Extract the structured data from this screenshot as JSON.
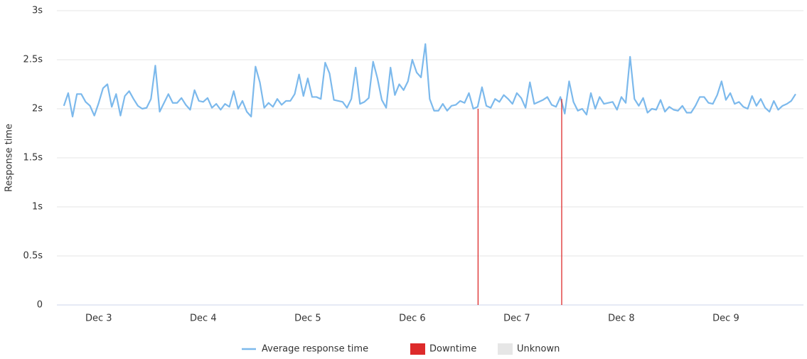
{
  "chart_data": {
    "type": "line",
    "y_label": "Response time",
    "xlim": [
      38.4,
      209.8
    ],
    "xticks": [
      {
        "value": 48,
        "label": "Dec 3"
      },
      {
        "value": 72,
        "label": "Dec 4"
      },
      {
        "value": 96,
        "label": "Dec 5"
      },
      {
        "value": 120,
        "label": "Dec 6"
      },
      {
        "value": 144,
        "label": "Dec 7"
      },
      {
        "value": 168,
        "label": "Dec 8"
      },
      {
        "value": 192,
        "label": "Dec 9"
      }
    ],
    "ylim": [
      0,
      3
    ],
    "yticks": [
      0,
      {
        "value": 0.5,
        "label": "0.5s"
      },
      {
        "value": 1,
        "label": "1s"
      },
      {
        "value": 1.5,
        "label": "1.5s"
      },
      {
        "value": 2,
        "label": "2s"
      },
      {
        "value": 2.5,
        "label": "2.5s"
      },
      {
        "value": 3,
        "label": "3s"
      }
    ],
    "grid": true,
    "legend": "bottom",
    "series": [
      {
        "name": "Average response time",
        "type": "line",
        "color": "#7cb9ec",
        "x": [
          40,
          41,
          42,
          43,
          44,
          45,
          46,
          47,
          48,
          49,
          50,
          51,
          52,
          53,
          54,
          55,
          56,
          57,
          58,
          59,
          60,
          61,
          62,
          63,
          64,
          65,
          66,
          67,
          68,
          69,
          70,
          71,
          72,
          73,
          74,
          75,
          76,
          77,
          78,
          79,
          80,
          81,
          82,
          83,
          84,
          85,
          86,
          87,
          88,
          89,
          90,
          91,
          92,
          93,
          94,
          95,
          96,
          97,
          98,
          99,
          100,
          101,
          102,
          103,
          104,
          105,
          106,
          107,
          108,
          109,
          110,
          111,
          112,
          113,
          114,
          115,
          116,
          117,
          118,
          119,
          120,
          121,
          122,
          123,
          124,
          125,
          126,
          127,
          128,
          129,
          130,
          131,
          132,
          133,
          134,
          135,
          136,
          137,
          138,
          139,
          140,
          141,
          142,
          143,
          144,
          145,
          146,
          147,
          148,
          149,
          150,
          151,
          152,
          153,
          154,
          155,
          156,
          157,
          158,
          159,
          160,
          161,
          162,
          163,
          164,
          165,
          166,
          167,
          168,
          169,
          170,
          171,
          172,
          173,
          174,
          175,
          176,
          177,
          178,
          179,
          180,
          181,
          182,
          183,
          184,
          185,
          186,
          187,
          188,
          189,
          190,
          191,
          192,
          193,
          194,
          195,
          196,
          197,
          198,
          199,
          200,
          201,
          202,
          203,
          204,
          205,
          206,
          207,
          208
        ],
        "values": [
          2.03,
          2.16,
          1.92,
          2.15,
          2.15,
          2.07,
          2.03,
          1.93,
          2.06,
          2.21,
          2.25,
          2.02,
          2.15,
          1.93,
          2.13,
          2.18,
          2.1,
          2.03,
          2.0,
          2.01,
          2.1,
          2.44,
          1.97,
          2.06,
          2.15,
          2.06,
          2.06,
          2.11,
          2.04,
          1.99,
          2.19,
          2.08,
          2.07,
          2.11,
          2.01,
          2.05,
          1.99,
          2.05,
          2.02,
          2.18,
          2.0,
          2.08,
          1.97,
          1.92,
          2.43,
          2.27,
          2.01,
          2.06,
          2.02,
          2.1,
          2.04,
          2.08,
          2.08,
          2.15,
          2.35,
          2.13,
          2.31,
          2.12,
          2.12,
          2.1,
          2.47,
          2.36,
          2.09,
          2.08,
          2.07,
          2.01,
          2.1,
          2.42,
          2.05,
          2.07,
          2.11,
          2.48,
          2.31,
          2.09,
          2.01,
          2.42,
          2.14,
          2.25,
          2.19,
          2.28,
          2.5,
          2.37,
          2.32,
          2.66,
          2.1,
          1.98,
          1.98,
          2.05,
          1.98,
          2.03,
          2.04,
          2.08,
          2.06,
          2.16,
          2.0,
          2.02,
          2.22,
          2.03,
          2.01,
          2.1,
          2.07,
          2.14,
          2.1,
          2.05,
          2.16,
          2.11,
          2.01,
          2.27,
          2.05,
          2.07,
          2.09,
          2.12,
          2.04,
          2.02,
          2.12,
          1.95,
          2.28,
          2.07,
          1.98,
          2.0,
          1.94,
          2.16,
          2.0,
          2.12,
          2.05,
          2.06,
          2.07,
          1.99,
          2.12,
          2.06,
          2.53,
          2.1,
          2.03,
          2.11,
          1.96,
          2.0,
          1.99,
          2.09,
          1.97,
          2.02,
          1.99,
          1.98,
          2.03,
          1.96,
          1.96,
          2.03,
          2.12,
          2.12,
          2.06,
          2.05,
          2.14,
          2.28,
          2.09,
          2.16,
          2.05,
          2.07,
          2.02,
          2.0,
          2.13,
          2.03,
          2.1,
          2.01,
          1.97,
          2.08,
          1.99,
          2.03,
          2.05,
          2.08,
          2.15
        ]
      },
      {
        "name": "Downtime",
        "type": "spike",
        "color": "#dd2a2a",
        "x": [
          135.1,
          154.3
        ],
        "values": [
          2.0,
          2.1
        ]
      },
      {
        "name": "Unknown",
        "type": "spike",
        "color": "#e6e6e6",
        "x": [],
        "values": []
      }
    ]
  }
}
